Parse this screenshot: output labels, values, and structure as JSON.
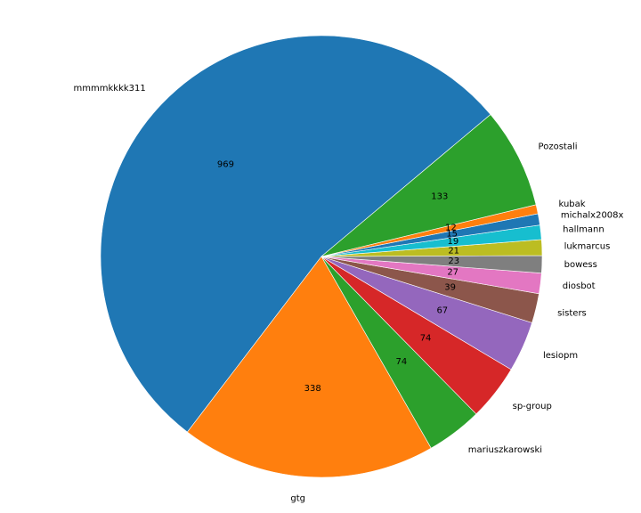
{
  "chart_data": {
    "type": "pie",
    "start_angle_deg": 40,
    "direction": "counterclockwise",
    "slices": [
      {
        "label": "mmmmkkkk311",
        "value": 969,
        "color": "#1f77b4"
      },
      {
        "label": "gtg",
        "value": 338,
        "color": "#ff7f0e"
      },
      {
        "label": "mariuszkarowski",
        "value": 74,
        "color": "#2ca02c"
      },
      {
        "label": "sp-group",
        "value": 74,
        "color": "#d62728"
      },
      {
        "label": "lesiopm",
        "value": 67,
        "color": "#9467bd"
      },
      {
        "label": "sisters",
        "value": 39,
        "color": "#8c564b"
      },
      {
        "label": "diosbot",
        "value": 27,
        "color": "#e377c2"
      },
      {
        "label": "bowess",
        "value": 23,
        "color": "#7f7f7f"
      },
      {
        "label": "lukmarcus",
        "value": 21,
        "color": "#bcbd22"
      },
      {
        "label": "hallmann",
        "value": 19,
        "color": "#17becf"
      },
      {
        "label": "michalx2008x",
        "value": 15,
        "color": "#1f77b4"
      },
      {
        "label": "kubak",
        "value": 12,
        "color": "#ff7f0e"
      },
      {
        "label": "Pozostali",
        "value": 133,
        "color": "#2ca02c"
      }
    ]
  }
}
